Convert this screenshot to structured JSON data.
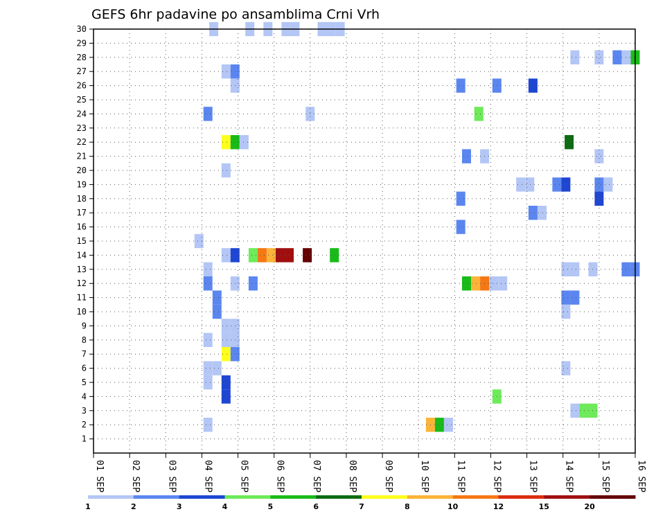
{
  "chart_data": {
    "type": "heatmap",
    "title": "GEFS 6hr padavine po ansamblima Crni Vrh",
    "xlabel": "",
    "ylabel": "",
    "x_ticks": [
      "01 SEP",
      "02 SEP",
      "03 SEP",
      "04 SEP",
      "05 SEP",
      "06 SEP",
      "07 SEP",
      "08 SEP",
      "09 SEP",
      "10 SEP",
      "11 SEP",
      "12 SEP",
      "13 SEP",
      "14 SEP",
      "15 SEP",
      "16 SEP"
    ],
    "y_ticks": [
      "1",
      "2",
      "3",
      "4",
      "5",
      "6",
      "7",
      "8",
      "9",
      "10",
      "11",
      "12",
      "13",
      "14",
      "15",
      "16",
      "17",
      "18",
      "19",
      "20",
      "21",
      "22",
      "23",
      "24",
      "25",
      "26",
      "27",
      "28",
      "29",
      "30"
    ],
    "xlim_days": [
      1,
      16
    ],
    "ylim": [
      0,
      30
    ],
    "grid": true,
    "colorbar": {
      "position": "bottom",
      "colors": [
        "#b3c6f5",
        "#5b86ef",
        "#1e46d2",
        "#6eea5a",
        "#19bb19",
        "#0d6b14",
        "#ffff1e",
        "#fbb437",
        "#f57814",
        "#dc2d10",
        "#a00f0f",
        "#640000"
      ],
      "labels": [
        "1",
        "2",
        "3",
        "4",
        "5",
        "6",
        "7",
        "8",
        "10",
        "12",
        "15",
        "20"
      ]
    },
    "cells": [
      {
        "day": 4.33,
        "ens": 30,
        "c": 0
      },
      {
        "day": 5.33,
        "ens": 30,
        "c": 0
      },
      {
        "day": 5.83,
        "ens": 30,
        "c": 0
      },
      {
        "day": 6.33,
        "ens": 30,
        "c": 0
      },
      {
        "day": 6.58,
        "ens": 30,
        "c": 0
      },
      {
        "day": 7.33,
        "ens": 30,
        "c": 0
      },
      {
        "day": 7.58,
        "ens": 30,
        "c": 0
      },
      {
        "day": 7.83,
        "ens": 30,
        "c": 0
      },
      {
        "day": 14.33,
        "ens": 28,
        "c": 0
      },
      {
        "day": 15.0,
        "ens": 28,
        "c": 0
      },
      {
        "day": 15.5,
        "ens": 28,
        "c": 1
      },
      {
        "day": 15.75,
        "ens": 28,
        "c": 0
      },
      {
        "day": 16.0,
        "ens": 28,
        "c": 4
      },
      {
        "day": 4.67,
        "ens": 27,
        "c": 0
      },
      {
        "day": 4.92,
        "ens": 27,
        "c": 1
      },
      {
        "day": 4.92,
        "ens": 26,
        "c": 0
      },
      {
        "day": 11.17,
        "ens": 26,
        "c": 1
      },
      {
        "day": 12.17,
        "ens": 26,
        "c": 1
      },
      {
        "day": 13.17,
        "ens": 26,
        "c": 2
      },
      {
        "day": 4.17,
        "ens": 24,
        "c": 1
      },
      {
        "day": 7.0,
        "ens": 24,
        "c": 0
      },
      {
        "day": 11.67,
        "ens": 24,
        "c": 3
      },
      {
        "day": 4.67,
        "ens": 22,
        "c": 6
      },
      {
        "day": 4.92,
        "ens": 22,
        "c": 4
      },
      {
        "day": 5.17,
        "ens": 22,
        "c": 0
      },
      {
        "day": 14.17,
        "ens": 22,
        "c": 5
      },
      {
        "day": 11.33,
        "ens": 21,
        "c": 1
      },
      {
        "day": 11.83,
        "ens": 21,
        "c": 0
      },
      {
        "day": 15.0,
        "ens": 21,
        "c": 0
      },
      {
        "day": 4.67,
        "ens": 20,
        "c": 0
      },
      {
        "day": 12.83,
        "ens": 19,
        "c": 0
      },
      {
        "day": 13.08,
        "ens": 19,
        "c": 0
      },
      {
        "day": 13.83,
        "ens": 19,
        "c": 1
      },
      {
        "day": 14.08,
        "ens": 19,
        "c": 2
      },
      {
        "day": 15.0,
        "ens": 19,
        "c": 1
      },
      {
        "day": 15.25,
        "ens": 19,
        "c": 0
      },
      {
        "day": 11.17,
        "ens": 18,
        "c": 1
      },
      {
        "day": 15.0,
        "ens": 18,
        "c": 2
      },
      {
        "day": 13.17,
        "ens": 17,
        "c": 1
      },
      {
        "day": 13.42,
        "ens": 17,
        "c": 0
      },
      {
        "day": 11.17,
        "ens": 16,
        "c": 1
      },
      {
        "day": 3.92,
        "ens": 15,
        "c": 0
      },
      {
        "day": 4.67,
        "ens": 14,
        "c": 0
      },
      {
        "day": 4.92,
        "ens": 14,
        "c": 2
      },
      {
        "day": 5.42,
        "ens": 14,
        "c": 3
      },
      {
        "day": 5.67,
        "ens": 14,
        "c": 8
      },
      {
        "day": 5.92,
        "ens": 14,
        "c": 7
      },
      {
        "day": 6.17,
        "ens": 14,
        "c": 10
      },
      {
        "day": 6.42,
        "ens": 14,
        "c": 10
      },
      {
        "day": 6.92,
        "ens": 14,
        "c": 11
      },
      {
        "day": 7.67,
        "ens": 14,
        "c": 4
      },
      {
        "day": 4.17,
        "ens": 13,
        "c": 0
      },
      {
        "day": 14.08,
        "ens": 13,
        "c": 0
      },
      {
        "day": 14.33,
        "ens": 13,
        "c": 0
      },
      {
        "day": 14.83,
        "ens": 13,
        "c": 0
      },
      {
        "day": 15.75,
        "ens": 13,
        "c": 1
      },
      {
        "day": 16.0,
        "ens": 13,
        "c": 1
      },
      {
        "day": 4.17,
        "ens": 12,
        "c": 1
      },
      {
        "day": 4.92,
        "ens": 12,
        "c": 0
      },
      {
        "day": 5.42,
        "ens": 12,
        "c": 1
      },
      {
        "day": 11.33,
        "ens": 12,
        "c": 4
      },
      {
        "day": 11.58,
        "ens": 12,
        "c": 7
      },
      {
        "day": 11.83,
        "ens": 12,
        "c": 8
      },
      {
        "day": 12.08,
        "ens": 12,
        "c": 0
      },
      {
        "day": 12.33,
        "ens": 12,
        "c": 0
      },
      {
        "day": 4.42,
        "ens": 11,
        "c": 1
      },
      {
        "day": 14.08,
        "ens": 11,
        "c": 1
      },
      {
        "day": 14.33,
        "ens": 11,
        "c": 1
      },
      {
        "day": 4.42,
        "ens": 10,
        "c": 1
      },
      {
        "day": 14.08,
        "ens": 10,
        "c": 0
      },
      {
        "day": 4.67,
        "ens": 9,
        "c": 0
      },
      {
        "day": 4.92,
        "ens": 9,
        "c": 0
      },
      {
        "day": 4.17,
        "ens": 8,
        "c": 0
      },
      {
        "day": 4.67,
        "ens": 8,
        "c": 0
      },
      {
        "day": 4.92,
        "ens": 8,
        "c": 0
      },
      {
        "day": 4.67,
        "ens": 7,
        "c": 6
      },
      {
        "day": 4.92,
        "ens": 7,
        "c": 1
      },
      {
        "day": 4.17,
        "ens": 6,
        "c": 0
      },
      {
        "day": 4.42,
        "ens": 6,
        "c": 0
      },
      {
        "day": 14.08,
        "ens": 6,
        "c": 0
      },
      {
        "day": 4.17,
        "ens": 5,
        "c": 0
      },
      {
        "day": 4.67,
        "ens": 5,
        "c": 2
      },
      {
        "day": 4.67,
        "ens": 4,
        "c": 2
      },
      {
        "day": 12.17,
        "ens": 4,
        "c": 3
      },
      {
        "day": 14.33,
        "ens": 3,
        "c": 0
      },
      {
        "day": 14.58,
        "ens": 3,
        "c": 3
      },
      {
        "day": 14.83,
        "ens": 3,
        "c": 3
      },
      {
        "day": 4.17,
        "ens": 2,
        "c": 0
      },
      {
        "day": 10.33,
        "ens": 2,
        "c": 7
      },
      {
        "day": 10.58,
        "ens": 2,
        "c": 4
      },
      {
        "day": 10.83,
        "ens": 2,
        "c": 0
      }
    ]
  }
}
